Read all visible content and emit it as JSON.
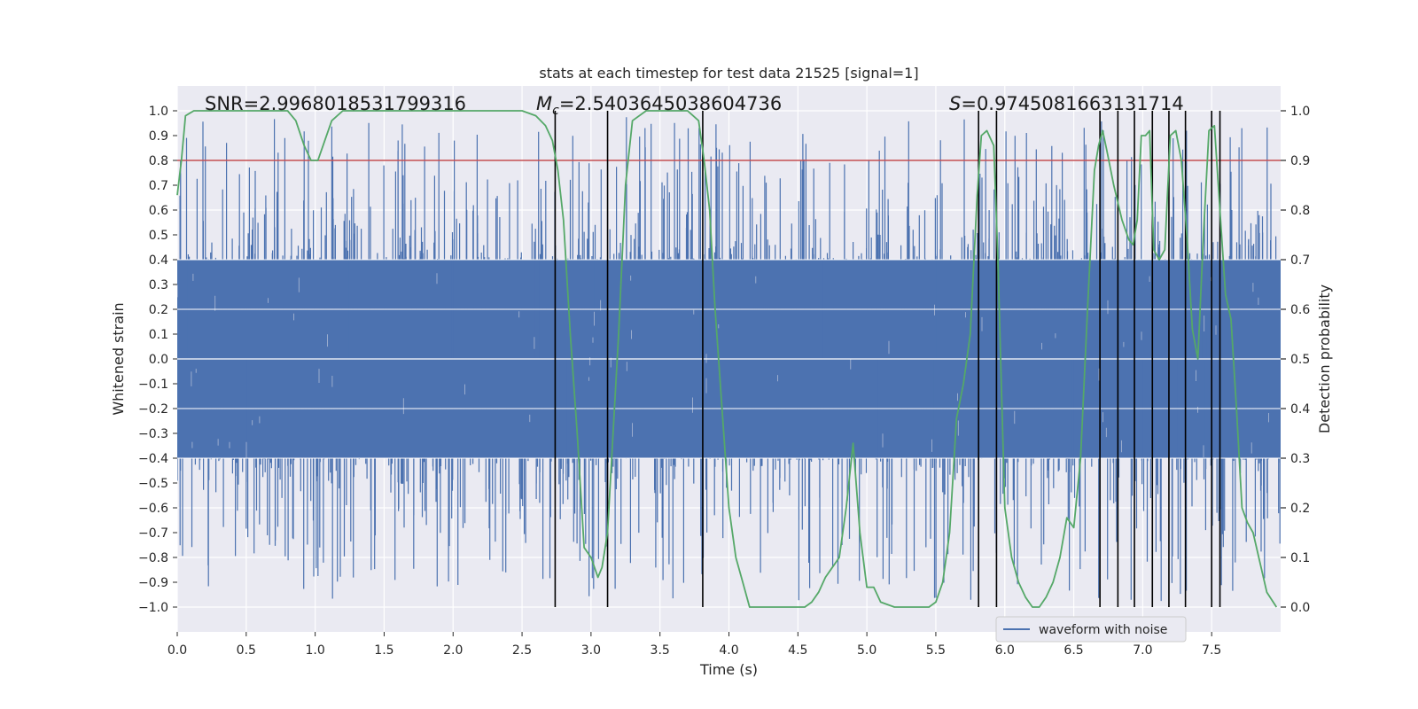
{
  "chart_data": {
    "type": "line",
    "title": "stats at each timestep for test data 21525 [signal=1]",
    "xlabel": "Time (s)",
    "ylabel_left": "Whitened strain",
    "ylabel_right": "Detection probability",
    "xlim": [
      0.0,
      8.0
    ],
    "ylim_left": [
      -1.1,
      1.1
    ],
    "ylim_right": [
      -0.05,
      1.05
    ],
    "x_ticks": [
      "0.0",
      "0.5",
      "1.0",
      "1.5",
      "2.0",
      "2.5",
      "3.0",
      "3.5",
      "4.0",
      "4.5",
      "5.0",
      "5.5",
      "6.0",
      "6.5",
      "7.0",
      "7.5"
    ],
    "y_ticks_left": [
      "1.0",
      "0.9",
      "0.8",
      "0.7",
      "0.6",
      "0.5",
      "0.4",
      "0.3",
      "0.2",
      "0.1",
      "0.0",
      "−0.1",
      "−0.2",
      "−0.3",
      "−0.4",
      "−0.5",
      "−0.6",
      "−0.7",
      "−0.8",
      "−0.9",
      "−1.0"
    ],
    "y_ticks_right": [
      "1.0",
      "0.9",
      "0.8",
      "0.7",
      "0.6",
      "0.5",
      "0.4",
      "0.3",
      "0.2",
      "0.1",
      "0.0"
    ],
    "grid": true,
    "annotations": {
      "snr": "SNR=2.9968018531799316",
      "mc_symbol": "M",
      "mc_sub": "c",
      "mc_value": "=2.5403645038604736",
      "s_symbol": "S",
      "s_value": "=0.9745081663131714"
    },
    "legend": {
      "label": "waveform with noise",
      "position": "lower-right"
    },
    "threshold": {
      "value": 0.9,
      "axis": "right",
      "color": "#c44e52"
    },
    "detections": [
      2.74,
      3.12,
      3.81,
      5.81,
      5.94,
      6.69,
      6.82,
      6.94,
      7.07,
      7.19,
      7.31,
      7.5,
      7.56
    ],
    "waveform": {
      "name": "waveform with noise",
      "color": "#4c72b0",
      "envelope": 0.4,
      "extreme_range": [
        -1.0,
        0.98
      ],
      "duration_s": 8.0
    },
    "probability": {
      "name": "detection probability",
      "color": "#55a868",
      "x": [
        0.0,
        0.03,
        0.06,
        0.12,
        0.2,
        0.3,
        0.4,
        0.5,
        0.6,
        0.7,
        0.8,
        0.86,
        0.92,
        0.97,
        1.02,
        1.07,
        1.12,
        1.2,
        1.3,
        1.5,
        1.7,
        1.9,
        2.1,
        2.3,
        2.5,
        2.6,
        2.67,
        2.72,
        2.76,
        2.8,
        2.85,
        2.9,
        2.95,
        3.0,
        3.05,
        3.08,
        3.12,
        3.15,
        3.2,
        3.25,
        3.3,
        3.4,
        3.5,
        3.6,
        3.7,
        3.78,
        3.82,
        3.86,
        3.9,
        3.95,
        4.0,
        4.05,
        4.1,
        4.15,
        4.2,
        4.3,
        4.4,
        4.5,
        4.55,
        4.6,
        4.65,
        4.7,
        4.75,
        4.8,
        4.85,
        4.9,
        4.95,
        5.0,
        5.05,
        5.1,
        5.2,
        5.3,
        5.4,
        5.45,
        5.5,
        5.55,
        5.6,
        5.65,
        5.7,
        5.75,
        5.8,
        5.83,
        5.87,
        5.92,
        5.95,
        5.98,
        6.0,
        6.05,
        6.1,
        6.15,
        6.2,
        6.25,
        6.3,
        6.35,
        6.4,
        6.45,
        6.5,
        6.55,
        6.6,
        6.65,
        6.68,
        6.71,
        6.74,
        6.79,
        6.85,
        6.9,
        6.93,
        6.96,
        6.99,
        7.02,
        7.05,
        7.08,
        7.12,
        7.16,
        7.2,
        7.24,
        7.28,
        7.32,
        7.36,
        7.4,
        7.44,
        7.48,
        7.52,
        7.56,
        7.6,
        7.64,
        7.68,
        7.72,
        7.76,
        7.8,
        7.9,
        7.97
      ],
      "y": [
        0.83,
        0.9,
        0.99,
        1.0,
        1.0,
        1.0,
        1.0,
        1.0,
        1.0,
        1.0,
        1.0,
        0.98,
        0.93,
        0.9,
        0.9,
        0.94,
        0.98,
        1.0,
        1.0,
        1.0,
        1.0,
        1.0,
        1.0,
        1.0,
        1.0,
        0.99,
        0.97,
        0.94,
        0.88,
        0.78,
        0.55,
        0.35,
        0.12,
        0.1,
        0.06,
        0.08,
        0.15,
        0.3,
        0.55,
        0.85,
        0.98,
        1.0,
        1.0,
        1.0,
        1.0,
        0.98,
        0.9,
        0.8,
        0.6,
        0.4,
        0.2,
        0.1,
        0.05,
        0.0,
        0.0,
        0.0,
        0.0,
        0.0,
        0.0,
        0.01,
        0.03,
        0.06,
        0.08,
        0.1,
        0.2,
        0.33,
        0.15,
        0.04,
        0.04,
        0.01,
        0.0,
        0.0,
        0.0,
        0.0,
        0.01,
        0.05,
        0.15,
        0.38,
        0.45,
        0.55,
        0.83,
        0.95,
        0.96,
        0.93,
        0.7,
        0.4,
        0.2,
        0.1,
        0.05,
        0.02,
        0.0,
        0.0,
        0.02,
        0.05,
        0.1,
        0.18,
        0.16,
        0.3,
        0.6,
        0.88,
        0.93,
        0.96,
        0.92,
        0.85,
        0.78,
        0.74,
        0.73,
        0.78,
        0.95,
        0.95,
        0.96,
        0.72,
        0.7,
        0.72,
        0.95,
        0.96,
        0.9,
        0.75,
        0.56,
        0.5,
        0.75,
        0.96,
        0.97,
        0.8,
        0.63,
        0.58,
        0.4,
        0.2,
        0.17,
        0.15,
        0.03,
        0.0
      ]
    }
  }
}
